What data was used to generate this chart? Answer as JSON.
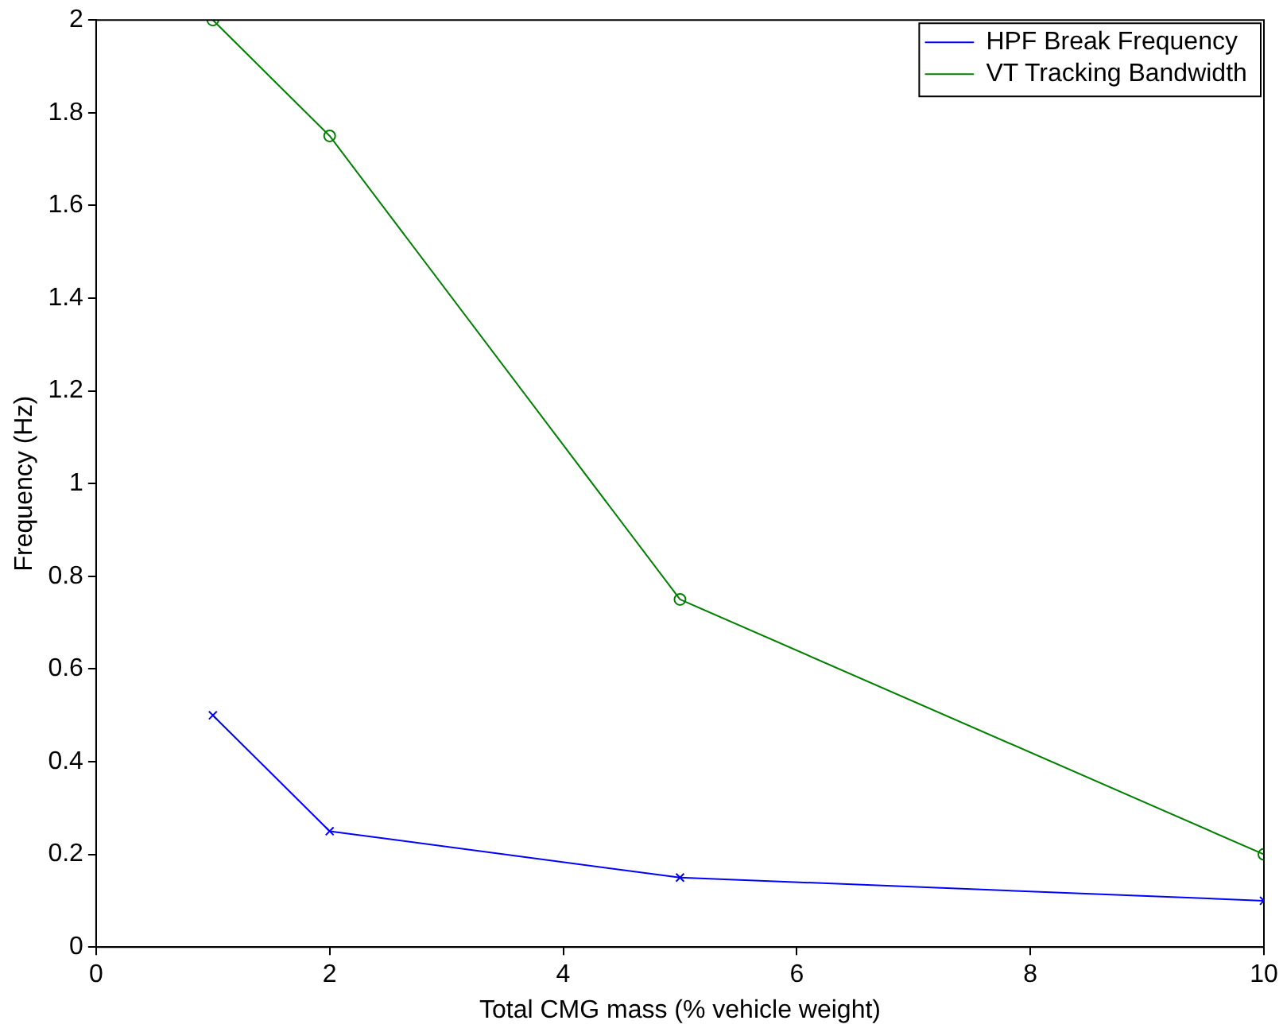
{
  "chart_data": {
    "type": "line",
    "xlabel": "Total CMG mass (% vehicle weight)",
    "ylabel": "Frequency (Hz)",
    "x": [
      1,
      2,
      5,
      10
    ],
    "series": [
      {
        "name": "HPF Break Frequency",
        "color": "#0000ff",
        "values": [
          0.5,
          0.25,
          0.15,
          0.1
        ],
        "marker": "cross"
      },
      {
        "name": "VT Tracking Bandwidth",
        "color": "#008000",
        "values": [
          2,
          1.75,
          0.75,
          0.2
        ],
        "marker": "circle"
      }
    ],
    "xlim": [
      0,
      10
    ],
    "xticks": [
      0,
      2,
      4,
      6,
      8,
      10
    ],
    "ylim": [
      0,
      2
    ],
    "yticks": [
      0,
      0.2,
      0.4,
      0.6,
      0.8,
      1,
      1.2,
      1.4,
      1.6,
      1.8,
      2
    ],
    "grid": false,
    "legend": "top right",
    "line_style": "solid"
  }
}
